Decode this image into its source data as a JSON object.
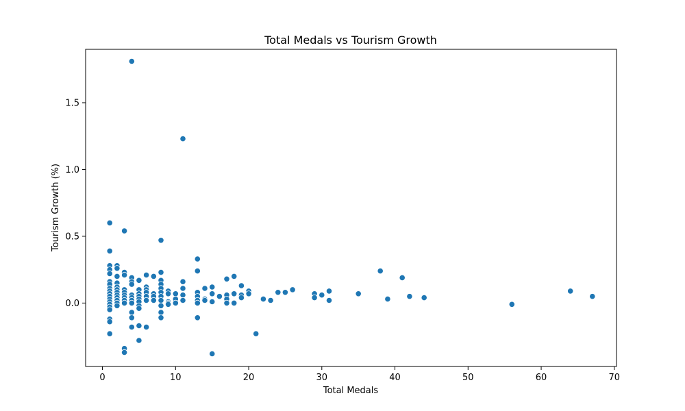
{
  "chart_data": {
    "type": "scatter",
    "title": "Total Medals vs Tourism Growth",
    "xlabel": "Total Medals",
    "ylabel": "Tourism Growth (%)",
    "xlim": [
      -2.3,
      70.3
    ],
    "ylim": [
      -0.475,
      1.9
    ],
    "xticks": [
      0,
      10,
      20,
      30,
      40,
      50,
      60,
      70
    ],
    "xtick_labels": [
      "0",
      "10",
      "20",
      "30",
      "40",
      "50",
      "60",
      "70"
    ],
    "yticks": [
      0.0,
      0.5,
      1.0,
      1.5
    ],
    "ytick_labels": [
      "0.0",
      "0.5",
      "1.0",
      "1.5"
    ],
    "grid": false,
    "legend": "none",
    "marker_color": "#1f77b4",
    "points": [
      [
        1,
        0.6
      ],
      [
        1,
        0.39
      ],
      [
        1,
        0.28
      ],
      [
        1,
        0.25
      ],
      [
        1,
        0.22
      ],
      [
        1,
        0.16
      ],
      [
        1,
        0.14
      ],
      [
        1,
        0.11
      ],
      [
        1,
        0.09
      ],
      [
        1,
        0.07
      ],
      [
        1,
        0.05
      ],
      [
        1,
        0.03
      ],
      [
        1,
        0.01
      ],
      [
        1,
        -0.01
      ],
      [
        1,
        -0.03
      ],
      [
        1,
        -0.05
      ],
      [
        1,
        -0.12
      ],
      [
        1,
        -0.14
      ],
      [
        1,
        -0.23
      ],
      [
        2,
        0.28
      ],
      [
        2,
        0.26
      ],
      [
        2,
        0.2
      ],
      [
        2,
        0.15
      ],
      [
        2,
        0.12
      ],
      [
        2,
        0.1
      ],
      [
        2,
        0.08
      ],
      [
        2,
        0.06
      ],
      [
        2,
        0.04
      ],
      [
        2,
        0.02
      ],
      [
        2,
        0.0
      ],
      [
        2,
        -0.02
      ],
      [
        3,
        0.54
      ],
      [
        3,
        0.23
      ],
      [
        3,
        0.21
      ],
      [
        3,
        0.1
      ],
      [
        3,
        0.08
      ],
      [
        3,
        0.06
      ],
      [
        3,
        0.04
      ],
      [
        3,
        0.02
      ],
      [
        3,
        0.0
      ],
      [
        3,
        -0.34
      ],
      [
        3,
        -0.37
      ],
      [
        4,
        1.81
      ],
      [
        4,
        0.19
      ],
      [
        4,
        0.16
      ],
      [
        4,
        0.14
      ],
      [
        4,
        0.06
      ],
      [
        4,
        0.04
      ],
      [
        4,
        0.02
      ],
      [
        4,
        0.0
      ],
      [
        4,
        -0.07
      ],
      [
        4,
        -0.11
      ],
      [
        4,
        -0.18
      ],
      [
        5,
        0.17
      ],
      [
        5,
        0.1
      ],
      [
        5,
        0.07
      ],
      [
        5,
        0.05
      ],
      [
        5,
        0.03
      ],
      [
        5,
        0.01
      ],
      [
        5,
        -0.02
      ],
      [
        5,
        -0.04
      ],
      [
        5,
        -0.17
      ],
      [
        5,
        -0.28
      ],
      [
        6,
        0.21
      ],
      [
        6,
        0.12
      ],
      [
        6,
        0.1
      ],
      [
        6,
        0.08
      ],
      [
        6,
        0.05
      ],
      [
        6,
        0.02
      ],
      [
        6,
        -0.18
      ],
      [
        7,
        0.2
      ],
      [
        7,
        0.07
      ],
      [
        7,
        0.05
      ],
      [
        7,
        0.02
      ],
      [
        8,
        0.47
      ],
      [
        8,
        0.23
      ],
      [
        8,
        0.17
      ],
      [
        8,
        0.14
      ],
      [
        8,
        0.11
      ],
      [
        8,
        0.08
      ],
      [
        8,
        0.05
      ],
      [
        8,
        0.02
      ],
      [
        8,
        -0.02
      ],
      [
        8,
        -0.07
      ],
      [
        8,
        -0.11
      ],
      [
        9,
        0.09
      ],
      [
        9,
        0.07
      ],
      [
        9,
        0.01
      ],
      [
        9,
        0.0
      ],
      [
        9,
        -0.01
      ],
      [
        10,
        0.07
      ],
      [
        10,
        0.03
      ],
      [
        10,
        0.0
      ],
      [
        11,
        1.23
      ],
      [
        11,
        0.16
      ],
      [
        11,
        0.11
      ],
      [
        11,
        0.06
      ],
      [
        11,
        0.02
      ],
      [
        13,
        0.33
      ],
      [
        13,
        0.24
      ],
      [
        13,
        0.08
      ],
      [
        13,
        0.05
      ],
      [
        13,
        0.02
      ],
      [
        13,
        0.0
      ],
      [
        13,
        -0.11
      ],
      [
        14,
        0.11
      ],
      [
        14,
        0.03
      ],
      [
        14,
        0.02
      ],
      [
        15,
        0.12
      ],
      [
        15,
        0.07
      ],
      [
        15,
        0.01
      ],
      [
        15,
        -0.38
      ],
      [
        16,
        0.05
      ],
      [
        17,
        0.18
      ],
      [
        17,
        0.06
      ],
      [
        17,
        0.03
      ],
      [
        17,
        0.0
      ],
      [
        18,
        0.2
      ],
      [
        18,
        0.07
      ],
      [
        18,
        0.0
      ],
      [
        19,
        0.13
      ],
      [
        19,
        0.06
      ],
      [
        19,
        0.04
      ],
      [
        20,
        0.09
      ],
      [
        20,
        0.07
      ],
      [
        21,
        -0.23
      ],
      [
        22,
        0.03
      ],
      [
        23,
        0.02
      ],
      [
        24,
        0.08
      ],
      [
        25,
        0.08
      ],
      [
        26,
        0.1
      ],
      [
        29,
        0.07
      ],
      [
        29,
        0.04
      ],
      [
        30,
        0.06
      ],
      [
        31,
        0.09
      ],
      [
        31,
        0.02
      ],
      [
        35,
        0.07
      ],
      [
        38,
        0.24
      ],
      [
        39,
        0.03
      ],
      [
        41,
        0.19
      ],
      [
        42,
        0.05
      ],
      [
        44,
        0.04
      ],
      [
        56,
        -0.01
      ],
      [
        64,
        0.09
      ],
      [
        67,
        0.05
      ]
    ]
  }
}
